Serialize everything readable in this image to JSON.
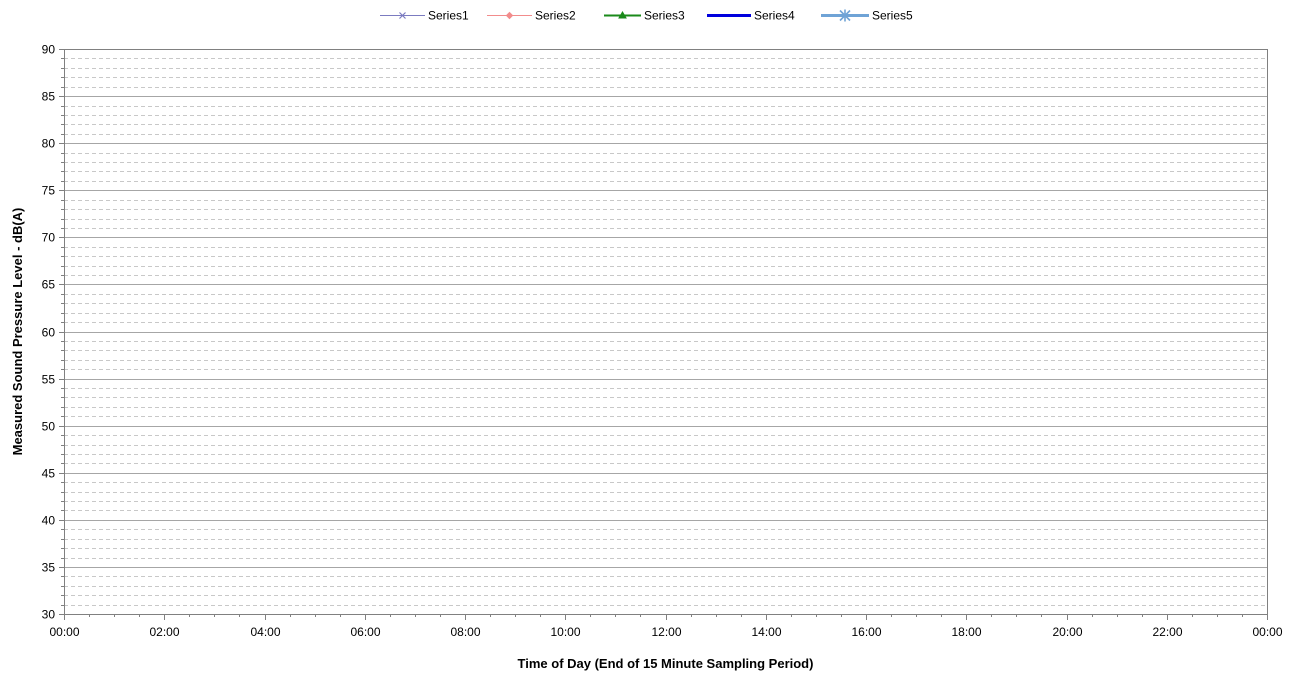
{
  "chart_data": {
    "type": "line",
    "title": "",
    "xlabel": "Time of Day (End of 15 Minute Sampling Period)",
    "ylabel": "Measured Sound Pressure Level - dB(A)",
    "ylim": [
      30,
      90
    ],
    "y_major_step": 5,
    "y_minor_step": 1,
    "y_ticks": [
      "30",
      "35",
      "40",
      "45",
      "50",
      "55",
      "60",
      "65",
      "70",
      "75",
      "80",
      "85",
      "90"
    ],
    "x_ticks": [
      "00:00",
      "02:00",
      "04:00",
      "06:00",
      "08:00",
      "10:00",
      "12:00",
      "14:00",
      "16:00",
      "18:00",
      "20:00",
      "22:00",
      "00:00"
    ],
    "x_minor_per_major": 4,
    "grid": true,
    "legend_position": "top",
    "series": [
      {
        "name": "Series1",
        "color": "#7b7bc0",
        "marker": "x",
        "values": []
      },
      {
        "name": "Series2",
        "color": "#f28c8c",
        "marker": "diamond",
        "values": []
      },
      {
        "name": "Series3",
        "color": "#1a8a1a",
        "marker": "triangle",
        "values": []
      },
      {
        "name": "Series4",
        "color": "#0000dd",
        "marker": "none",
        "values": []
      },
      {
        "name": "Series5",
        "color": "#6fa3d6",
        "marker": "asterisk",
        "values": []
      }
    ]
  }
}
